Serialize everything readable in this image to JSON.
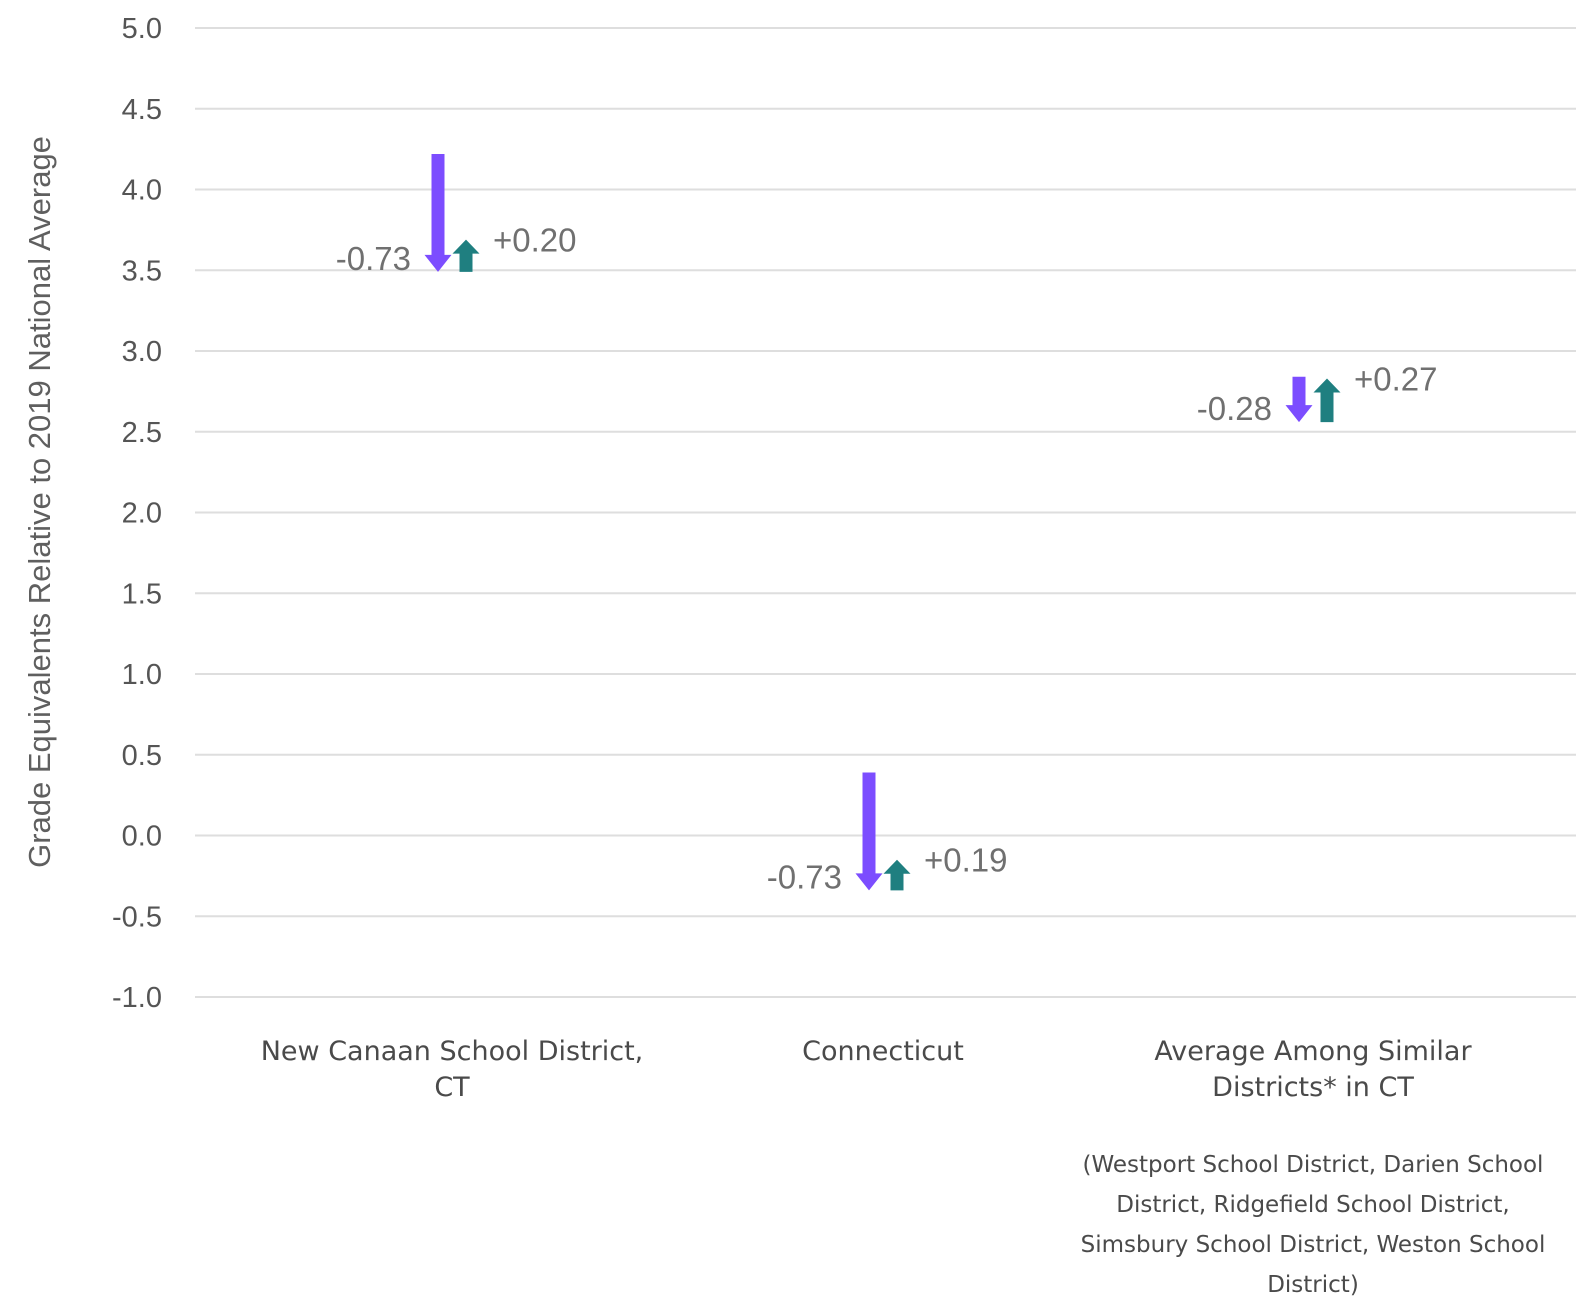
{
  "chart_data": {
    "type": "arrow",
    "ylabel": "Grade Equivalents Relative to 2019 National Average",
    "ylim": [
      -1.0,
      5.0
    ],
    "yticks": [
      "5.0",
      "4.5",
      "4.0",
      "3.5",
      "3.0",
      "2.5",
      "2.0",
      "1.5",
      "1.0",
      "0.5",
      "0.0",
      "-0.5",
      "-1.0"
    ],
    "grid": true,
    "categories": [
      {
        "lines": [
          "New Canaan School District,",
          "CT"
        ]
      },
      {
        "lines": [
          "Connecticut"
        ]
      },
      {
        "lines": [
          "Average Among Similar",
          "Districts* in CT"
        ],
        "note": [
          "(Westport School District, Darien School",
          "District, Ridgefield School District,",
          "Simsbury School District, Weston School",
          "District)"
        ]
      }
    ],
    "series": [
      {
        "start": 4.22,
        "end": 3.49,
        "change_label": "-0.73",
        "color": "#7c4dff"
      },
      {
        "start": 3.49,
        "end": 3.69,
        "change_label": "+0.20",
        "color": "#1f7f80"
      }
    ],
    "points": [
      {
        "decline": {
          "from": 4.22,
          "to": 3.49,
          "label": "-0.73"
        },
        "recovery": {
          "from": 3.49,
          "to": 3.69,
          "label": "+0.20"
        }
      },
      {
        "decline": {
          "from": 0.39,
          "to": -0.34,
          "label": "-0.73"
        },
        "recovery": {
          "from": -0.34,
          "to": -0.15,
          "label": "+0.19"
        }
      },
      {
        "decline": {
          "from": 2.84,
          "to": 2.56,
          "label": "-0.28"
        },
        "recovery": {
          "from": 2.56,
          "to": 2.83,
          "label": "+0.27"
        }
      }
    ],
    "colors": {
      "decline": "#7c4dff",
      "recovery": "#1f7f80",
      "grid": "#dedede",
      "text": "#555555"
    }
  }
}
